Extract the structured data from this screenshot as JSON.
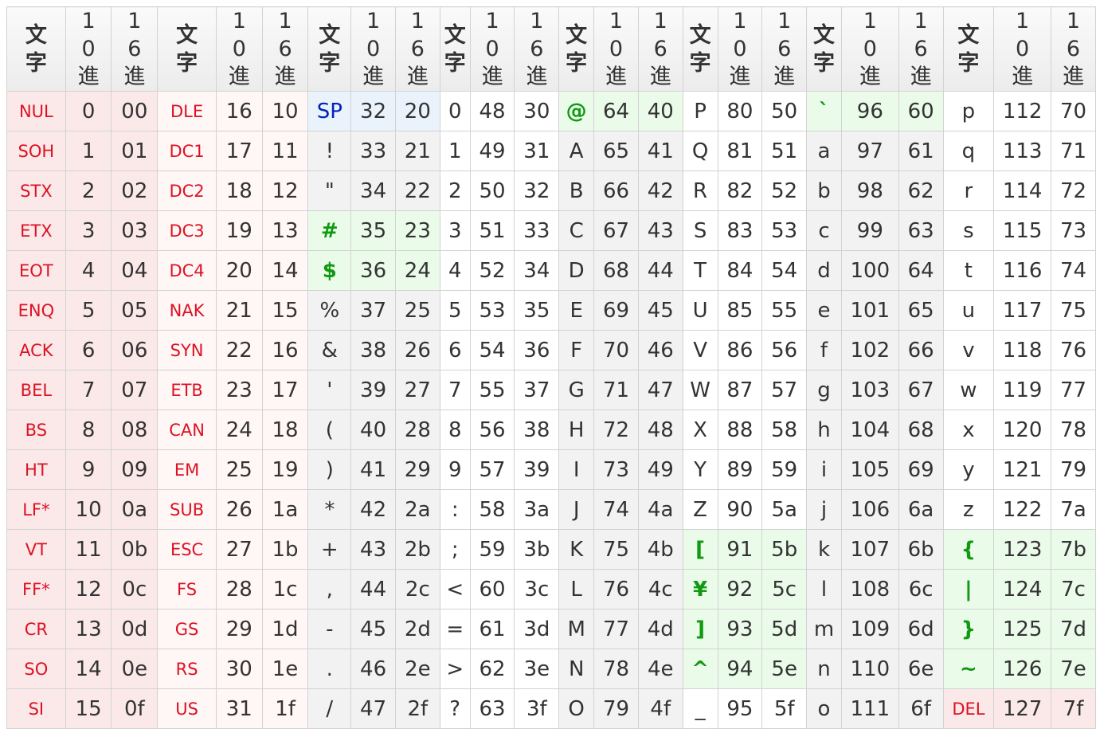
{
  "header": {
    "char": "文字",
    "dec": "10進",
    "hex": "16進"
  },
  "columns": [
    {
      "rows": [
        {
          "char": "NUL",
          "dec": "0",
          "hex": "00"
        },
        {
          "char": "SOH",
          "dec": "1",
          "hex": "01"
        },
        {
          "char": "STX",
          "dec": "2",
          "hex": "02"
        },
        {
          "char": "ETX",
          "dec": "3",
          "hex": "03"
        },
        {
          "char": "EOT",
          "dec": "4",
          "hex": "04"
        },
        {
          "char": "ENQ",
          "dec": "5",
          "hex": "05"
        },
        {
          "char": "ACK",
          "dec": "6",
          "hex": "06"
        },
        {
          "char": "BEL",
          "dec": "7",
          "hex": "07"
        },
        {
          "char": "BS",
          "dec": "8",
          "hex": "08"
        },
        {
          "char": "HT",
          "dec": "9",
          "hex": "09"
        },
        {
          "char": "LF*",
          "dec": "10",
          "hex": "0a"
        },
        {
          "char": "VT",
          "dec": "11",
          "hex": "0b"
        },
        {
          "char": "FF*",
          "dec": "12",
          "hex": "0c"
        },
        {
          "char": "CR",
          "dec": "13",
          "hex": "0d"
        },
        {
          "char": "SO",
          "dec": "14",
          "hex": "0e"
        },
        {
          "char": "SI",
          "dec": "15",
          "hex": "0f"
        }
      ]
    },
    {
      "rows": [
        {
          "char": "DLE",
          "dec": "16",
          "hex": "10"
        },
        {
          "char": "DC1",
          "dec": "17",
          "hex": "11"
        },
        {
          "char": "DC2",
          "dec": "18",
          "hex": "12"
        },
        {
          "char": "DC3",
          "dec": "19",
          "hex": "13"
        },
        {
          "char": "DC4",
          "dec": "20",
          "hex": "14"
        },
        {
          "char": "NAK",
          "dec": "21",
          "hex": "15"
        },
        {
          "char": "SYN",
          "dec": "22",
          "hex": "16"
        },
        {
          "char": "ETB",
          "dec": "23",
          "hex": "17"
        },
        {
          "char": "CAN",
          "dec": "24",
          "hex": "18"
        },
        {
          "char": "EM",
          "dec": "25",
          "hex": "19"
        },
        {
          "char": "SUB",
          "dec": "26",
          "hex": "1a"
        },
        {
          "char": "ESC",
          "dec": "27",
          "hex": "1b"
        },
        {
          "char": "FS",
          "dec": "28",
          "hex": "1c"
        },
        {
          "char": "GS",
          "dec": "29",
          "hex": "1d"
        },
        {
          "char": "RS",
          "dec": "30",
          "hex": "1e"
        },
        {
          "char": "US",
          "dec": "31",
          "hex": "1f"
        }
      ]
    },
    {
      "rows": [
        {
          "char": "SP",
          "dec": "32",
          "hex": "20",
          "style": "blue"
        },
        {
          "char": "!",
          "dec": "33",
          "hex": "21"
        },
        {
          "char": "\"",
          "dec": "34",
          "hex": "22"
        },
        {
          "char": "#",
          "dec": "35",
          "hex": "23",
          "style": "green"
        },
        {
          "char": "$",
          "dec": "36",
          "hex": "24",
          "style": "green"
        },
        {
          "char": "%",
          "dec": "37",
          "hex": "25"
        },
        {
          "char": "&",
          "dec": "38",
          "hex": "26"
        },
        {
          "char": "'",
          "dec": "39",
          "hex": "27"
        },
        {
          "char": "(",
          "dec": "40",
          "hex": "28"
        },
        {
          "char": ")",
          "dec": "41",
          "hex": "29"
        },
        {
          "char": "*",
          "dec": "42",
          "hex": "2a"
        },
        {
          "char": "+",
          "dec": "43",
          "hex": "2b"
        },
        {
          "char": ",",
          "dec": "44",
          "hex": "2c"
        },
        {
          "char": "-",
          "dec": "45",
          "hex": "2d"
        },
        {
          "char": ".",
          "dec": "46",
          "hex": "2e"
        },
        {
          "char": "/",
          "dec": "47",
          "hex": "2f"
        }
      ]
    },
    {
      "rows": [
        {
          "char": "0",
          "dec": "48",
          "hex": "30"
        },
        {
          "char": "1",
          "dec": "49",
          "hex": "31"
        },
        {
          "char": "2",
          "dec": "50",
          "hex": "32"
        },
        {
          "char": "3",
          "dec": "51",
          "hex": "33"
        },
        {
          "char": "4",
          "dec": "52",
          "hex": "34"
        },
        {
          "char": "5",
          "dec": "53",
          "hex": "35"
        },
        {
          "char": "6",
          "dec": "54",
          "hex": "36"
        },
        {
          "char": "7",
          "dec": "55",
          "hex": "37"
        },
        {
          "char": "8",
          "dec": "56",
          "hex": "38"
        },
        {
          "char": "9",
          "dec": "57",
          "hex": "39"
        },
        {
          "char": ":",
          "dec": "58",
          "hex": "3a"
        },
        {
          "char": ";",
          "dec": "59",
          "hex": "3b"
        },
        {
          "char": "<",
          "dec": "60",
          "hex": "3c"
        },
        {
          "char": "=",
          "dec": "61",
          "hex": "3d"
        },
        {
          "char": ">",
          "dec": "62",
          "hex": "3e"
        },
        {
          "char": "?",
          "dec": "63",
          "hex": "3f"
        }
      ]
    },
    {
      "rows": [
        {
          "char": "@",
          "dec": "64",
          "hex": "40",
          "style": "green"
        },
        {
          "char": "A",
          "dec": "65",
          "hex": "41"
        },
        {
          "char": "B",
          "dec": "66",
          "hex": "42"
        },
        {
          "char": "C",
          "dec": "67",
          "hex": "43"
        },
        {
          "char": "D",
          "dec": "68",
          "hex": "44"
        },
        {
          "char": "E",
          "dec": "69",
          "hex": "45"
        },
        {
          "char": "F",
          "dec": "70",
          "hex": "46"
        },
        {
          "char": "G",
          "dec": "71",
          "hex": "47"
        },
        {
          "char": "H",
          "dec": "72",
          "hex": "48"
        },
        {
          "char": "I",
          "dec": "73",
          "hex": "49"
        },
        {
          "char": "J",
          "dec": "74",
          "hex": "4a"
        },
        {
          "char": "K",
          "dec": "75",
          "hex": "4b"
        },
        {
          "char": "L",
          "dec": "76",
          "hex": "4c"
        },
        {
          "char": "M",
          "dec": "77",
          "hex": "4d"
        },
        {
          "char": "N",
          "dec": "78",
          "hex": "4e"
        },
        {
          "char": "O",
          "dec": "79",
          "hex": "4f"
        }
      ]
    },
    {
      "rows": [
        {
          "char": "P",
          "dec": "80",
          "hex": "50"
        },
        {
          "char": "Q",
          "dec": "81",
          "hex": "51"
        },
        {
          "char": "R",
          "dec": "82",
          "hex": "52"
        },
        {
          "char": "S",
          "dec": "83",
          "hex": "53"
        },
        {
          "char": "T",
          "dec": "84",
          "hex": "54"
        },
        {
          "char": "U",
          "dec": "85",
          "hex": "55"
        },
        {
          "char": "V",
          "dec": "86",
          "hex": "56"
        },
        {
          "char": "W",
          "dec": "87",
          "hex": "57"
        },
        {
          "char": "X",
          "dec": "88",
          "hex": "58"
        },
        {
          "char": "Y",
          "dec": "89",
          "hex": "59"
        },
        {
          "char": "Z",
          "dec": "90",
          "hex": "5a"
        },
        {
          "char": "[",
          "dec": "91",
          "hex": "5b",
          "style": "green"
        },
        {
          "char": "¥",
          "dec": "92",
          "hex": "5c",
          "style": "green"
        },
        {
          "char": "]",
          "dec": "93",
          "hex": "5d",
          "style": "green"
        },
        {
          "char": "^",
          "dec": "94",
          "hex": "5e",
          "style": "green"
        },
        {
          "char": "_",
          "dec": "95",
          "hex": "5f"
        }
      ]
    },
    {
      "rows": [
        {
          "char": "`",
          "dec": "96",
          "hex": "60",
          "style": "green"
        },
        {
          "char": "a",
          "dec": "97",
          "hex": "61"
        },
        {
          "char": "b",
          "dec": "98",
          "hex": "62"
        },
        {
          "char": "c",
          "dec": "99",
          "hex": "63"
        },
        {
          "char": "d",
          "dec": "100",
          "hex": "64"
        },
        {
          "char": "e",
          "dec": "101",
          "hex": "65"
        },
        {
          "char": "f",
          "dec": "102",
          "hex": "66"
        },
        {
          "char": "g",
          "dec": "103",
          "hex": "67"
        },
        {
          "char": "h",
          "dec": "104",
          "hex": "68"
        },
        {
          "char": "i",
          "dec": "105",
          "hex": "69"
        },
        {
          "char": "j",
          "dec": "106",
          "hex": "6a"
        },
        {
          "char": "k",
          "dec": "107",
          "hex": "6b"
        },
        {
          "char": "l",
          "dec": "108",
          "hex": "6c"
        },
        {
          "char": "m",
          "dec": "109",
          "hex": "6d"
        },
        {
          "char": "n",
          "dec": "110",
          "hex": "6e"
        },
        {
          "char": "o",
          "dec": "111",
          "hex": "6f"
        }
      ]
    },
    {
      "rows": [
        {
          "char": "p",
          "dec": "112",
          "hex": "70"
        },
        {
          "char": "q",
          "dec": "113",
          "hex": "71"
        },
        {
          "char": "r",
          "dec": "114",
          "hex": "72"
        },
        {
          "char": "s",
          "dec": "115",
          "hex": "73"
        },
        {
          "char": "t",
          "dec": "116",
          "hex": "74"
        },
        {
          "char": "u",
          "dec": "117",
          "hex": "75"
        },
        {
          "char": "v",
          "dec": "118",
          "hex": "76"
        },
        {
          "char": "w",
          "dec": "119",
          "hex": "77"
        },
        {
          "char": "x",
          "dec": "120",
          "hex": "78"
        },
        {
          "char": "y",
          "dec": "121",
          "hex": "79"
        },
        {
          "char": "z",
          "dec": "122",
          "hex": "7a"
        },
        {
          "char": "{",
          "dec": "123",
          "hex": "7b",
          "style": "green"
        },
        {
          "char": "|",
          "dec": "124",
          "hex": "7c",
          "style": "green"
        },
        {
          "char": "}",
          "dec": "125",
          "hex": "7d",
          "style": "green"
        },
        {
          "char": "~",
          "dec": "126",
          "hex": "7e",
          "style": "green"
        },
        {
          "char": "DEL",
          "dec": "127",
          "hex": "7f",
          "style": "ctrl"
        }
      ]
    }
  ],
  "colors": {
    "control_text": "#dd1122",
    "space_text": "#0022bb",
    "variant_text": "#119911",
    "control_bg": "#fbe9ea",
    "variant_bg": "#eafbea",
    "space_bg": "#eaf3fc",
    "alt_column_bg": "#f2f2f2"
  }
}
